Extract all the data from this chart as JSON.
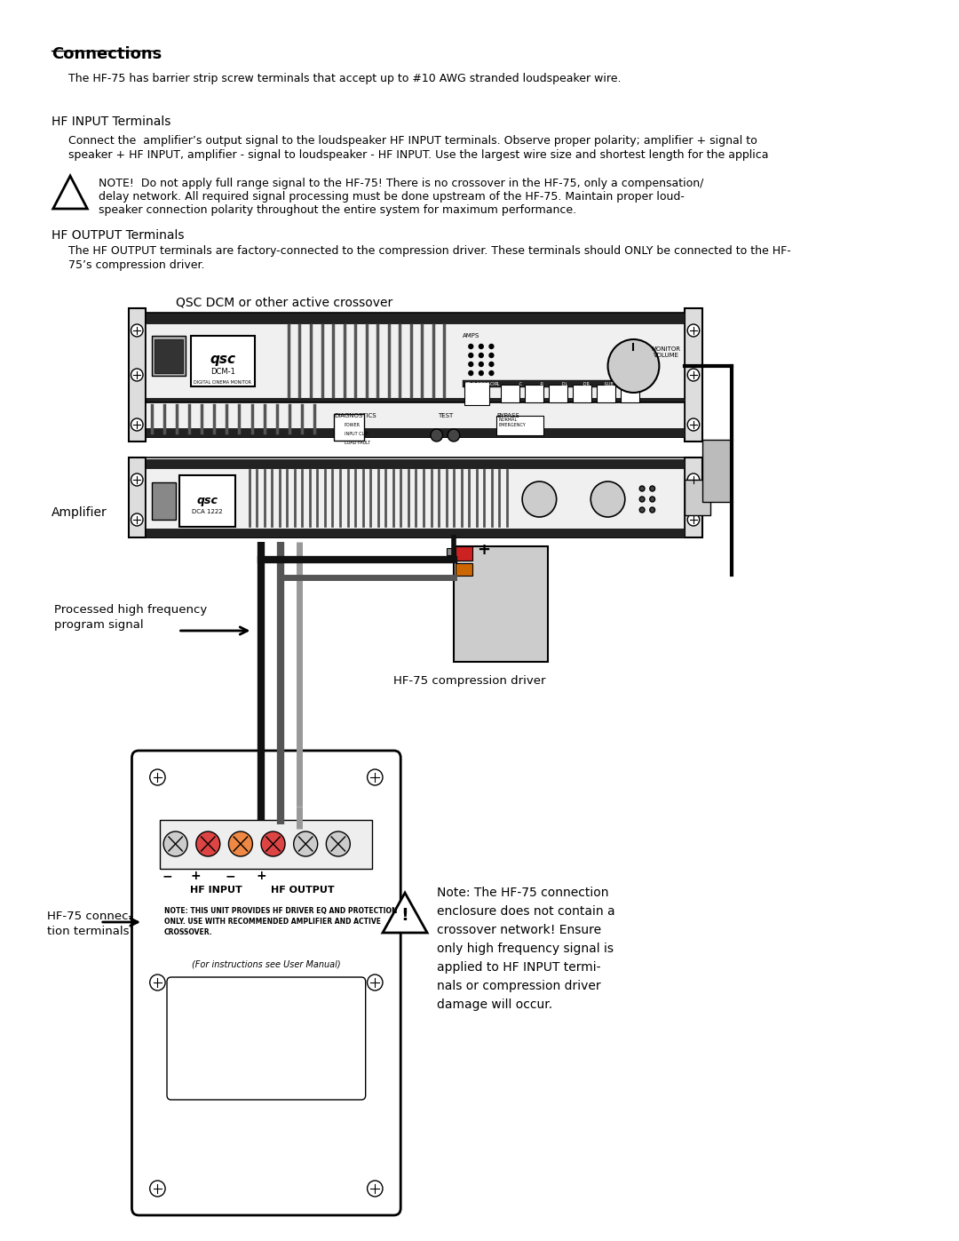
{
  "title": "Connections",
  "bg_color": "#ffffff",
  "text_color": "#000000",
  "fig_width": 10.8,
  "fig_height": 13.97,
  "connections_text": "The HF-75 has barrier strip screw terminals that accept up to #10 AWG stranded loudspeaker wire.",
  "hf_input_title": "HF INPUT Terminals",
  "hf_input_text1": "Connect the  amplifier’s output signal to the loudspeaker HF INPUT terminals. Observe proper polarity; amplifier + signal to",
  "hf_input_text2": "speaker + HF INPUT, amplifier - signal to loudspeaker - HF INPUT. Use the largest wire size and shortest length for the applica",
  "note_text_1": "NOTE!  Do not apply full range signal to the HF-75! There is no crossover in the HF-75, only a compensation/",
  "note_text_2": "delay network. All required signal processing must be done upstream of the HF-75. Maintain proper loud-",
  "note_text_3": "speaker connection polarity throughout the entire system for maximum performance.",
  "hf_output_title": "HF OUTPUT Terminals",
  "hf_output_text1": "The HF OUTPUT terminals are factory-connected to the compression driver. These terminals should ONLY be connected to the HF-",
  "hf_output_text2": "75’s compression driver.",
  "crossover_label": "QSC DCM or other active crossover",
  "amplifier_label": "Amplifier",
  "signal_label_1": "Processed high frequency",
  "signal_label_2": "program signal",
  "hf75_conn_label_1": "HF-75 connec-",
  "hf75_conn_label_2": "tion terminals",
  "compression_label": "HF-75 compression driver",
  "hf_input_label": "HF INPUT",
  "hf_output_label": "HF OUTPUT",
  "note2_line1": "Note: The HF-75 connection",
  "note2_line2": "enclosure does not contain a",
  "note2_line3": "crossover network! Ensure",
  "note2_line4": "only high frequency signal is",
  "note2_line5": "applied to HF INPUT termi-",
  "note2_line6": "nals or compression driver",
  "note2_line7": "damage will occur.",
  "panel_note_line1": "NOTE: THIS UNIT PROVIDES HF DRIVER EQ AND PROTECTION",
  "panel_note_line2": "ONLY. USE WITH RECOMMENDED AMPLIFIER AND ACTIVE",
  "panel_note_line3": "CROSSOVER.",
  "panel_instr_text": "(For instructions see User Manual)"
}
